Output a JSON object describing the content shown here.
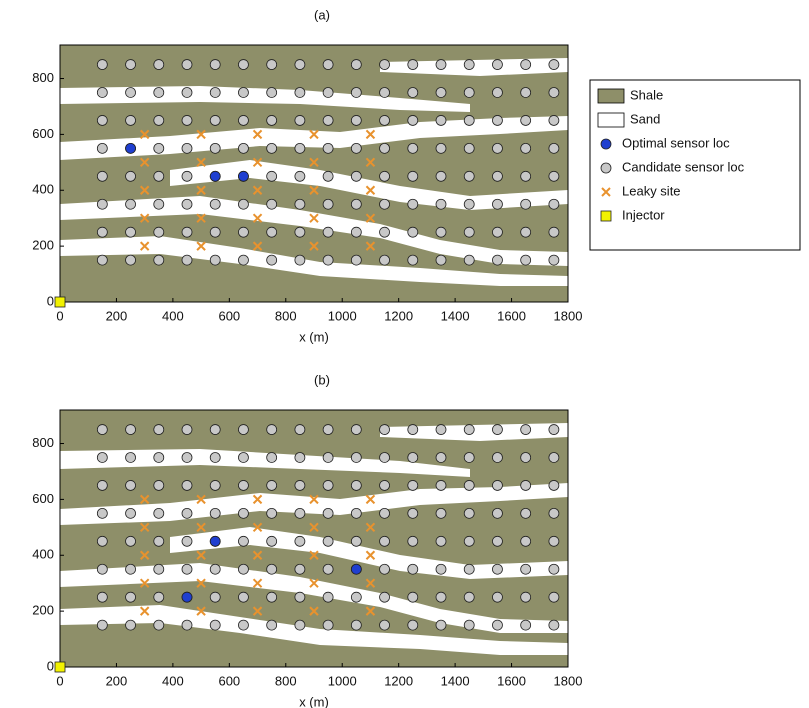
{
  "chart_data": [
    {
      "type": "scatter",
      "title": "(a)",
      "xlabel": "x (m)",
      "xlim": [
        0,
        1800
      ],
      "ylim": [
        0,
        920
      ],
      "xticks": [
        0,
        200,
        400,
        600,
        800,
        1000,
        1200,
        1400,
        1600,
        1800
      ],
      "yticks": [
        0,
        200,
        400,
        600,
        800
      ],
      "legend": "right",
      "layers": [
        {
          "name": "Shale",
          "color": "#8e8f69"
        },
        {
          "name": "Sand",
          "color": "#ffffff"
        }
      ],
      "series": [
        {
          "name": "Candidate sensor loc",
          "color": "#c8c8c8",
          "marker": "circle",
          "x": [
            150,
            250,
            350,
            450,
            550,
            650,
            750,
            850,
            950,
            1050,
            1150,
            1250,
            1350,
            1450,
            1550,
            1650,
            1750,
            150,
            250,
            350,
            450,
            550,
            650,
            750,
            850,
            950,
            1050,
            1150,
            1250,
            1350,
            1450,
            1550,
            1650,
            1750,
            150,
            250,
            350,
            450,
            550,
            650,
            750,
            850,
            950,
            1050,
            1150,
            1250,
            1350,
            1450,
            1550,
            1650,
            1750,
            150,
            250,
            350,
            450,
            550,
            650,
            750,
            850,
            950,
            1050,
            1150,
            1250,
            1350,
            1450,
            1550,
            1650,
            1750,
            150,
            250,
            350,
            450,
            550,
            650,
            750,
            850,
            950,
            1050,
            1150,
            1250,
            1350,
            1450,
            1550,
            1650,
            1750,
            150,
            250,
            350,
            450,
            550,
            650,
            750,
            850,
            950,
            1050,
            1150,
            1250,
            1350,
            1450,
            1550,
            1650,
            1750,
            150,
            250,
            350,
            450,
            550,
            650,
            750,
            850,
            950,
            1050,
            1150,
            1250,
            1350,
            1450,
            1550,
            1650,
            1750,
            150,
            250,
            350,
            450,
            550,
            650,
            750,
            850,
            950,
            1050,
            1150,
            1250,
            1350,
            1450,
            1550,
            1650,
            1750
          ],
          "values": [
            150,
            150,
            150,
            150,
            150,
            150,
            150,
            150,
            150,
            150,
            150,
            150,
            150,
            150,
            150,
            150,
            150,
            250,
            250,
            250,
            250,
            250,
            250,
            250,
            250,
            250,
            250,
            250,
            250,
            250,
            250,
            250,
            250,
            250,
            350,
            350,
            350,
            350,
            350,
            350,
            350,
            350,
            350,
            350,
            350,
            350,
            350,
            350,
            350,
            350,
            350,
            450,
            450,
            450,
            450,
            450,
            450,
            450,
            450,
            450,
            450,
            450,
            450,
            450,
            450,
            450,
            450,
            450,
            550,
            550,
            550,
            550,
            550,
            550,
            550,
            550,
            550,
            550,
            550,
            550,
            550,
            550,
            550,
            550,
            550,
            650,
            650,
            650,
            650,
            650,
            650,
            650,
            650,
            650,
            650,
            650,
            650,
            650,
            650,
            650,
            650,
            650,
            750,
            750,
            750,
            750,
            750,
            750,
            750,
            750,
            750,
            750,
            750,
            750,
            750,
            750,
            750,
            750,
            750,
            850,
            850,
            850,
            850,
            850,
            850,
            850,
            850,
            850,
            850,
            850,
            850,
            850,
            850,
            850,
            850,
            850
          ]
        },
        {
          "name": "Optimal sensor loc",
          "color": "#1f3fd0",
          "marker": "circle",
          "x": [
            250,
            550,
            650
          ],
          "values": [
            550,
            450,
            450
          ]
        },
        {
          "name": "Leaky site",
          "color": "#e8922e",
          "marker": "x",
          "x": [
            300,
            500,
            700,
            900,
            1100,
            300,
            500,
            700,
            900,
            1100,
            300,
            500,
            700,
            900,
            1100,
            300,
            500,
            700,
            900,
            1100,
            300,
            500,
            700,
            900,
            1100
          ],
          "values": [
            200,
            200,
            200,
            200,
            200,
            300,
            300,
            300,
            300,
            300,
            400,
            400,
            400,
            400,
            400,
            500,
            500,
            500,
            500,
            500,
            600,
            600,
            600,
            600,
            600
          ]
        },
        {
          "name": "Injector",
          "color": "#f2f200",
          "marker": "square",
          "x": [
            0
          ],
          "values": [
            0
          ]
        }
      ]
    },
    {
      "type": "scatter",
      "title": "(b)",
      "xlabel": "x (m)",
      "xlim": [
        0,
        1800
      ],
      "ylim": [
        0,
        920
      ],
      "xticks": [
        0,
        200,
        400,
        600,
        800,
        1000,
        1200,
        1400,
        1600,
        1800
      ],
      "yticks": [
        0,
        200,
        400,
        600,
        800
      ],
      "series": [
        {
          "color": "#c8c8c8",
          "marker": "circle",
          "x": [
            150,
            250,
            350,
            450,
            550,
            650,
            750,
            850,
            950,
            1050,
            1150,
            1250,
            1350,
            1450,
            1550,
            1650,
            1750,
            150,
            250,
            350,
            450,
            550,
            650,
            750,
            850,
            950,
            1050,
            1150,
            1250,
            1350,
            1450,
            1550,
            1650,
            1750,
            150,
            250,
            350,
            450,
            550,
            650,
            750,
            850,
            950,
            1050,
            1150,
            1250,
            1350,
            1450,
            1550,
            1650,
            1750,
            150,
            250,
            350,
            450,
            550,
            650,
            750,
            850,
            950,
            1050,
            1150,
            1250,
            1350,
            1450,
            1550,
            1650,
            1750,
            150,
            250,
            350,
            450,
            550,
            650,
            750,
            850,
            950,
            1050,
            1150,
            1250,
            1350,
            1450,
            1550,
            1650,
            1750,
            150,
            250,
            350,
            450,
            550,
            650,
            750,
            850,
            950,
            1050,
            1150,
            1250,
            1350,
            1450,
            1550,
            1650,
            1750,
            150,
            250,
            350,
            450,
            550,
            650,
            750,
            850,
            950,
            1050,
            1150,
            1250,
            1350,
            1450,
            1550,
            1650,
            1750,
            150,
            250,
            350,
            450,
            550,
            650,
            750,
            850,
            950,
            1050,
            1150,
            1250,
            1350,
            1450,
            1550,
            1650,
            1750
          ],
          "values": [
            150,
            150,
            150,
            150,
            150,
            150,
            150,
            150,
            150,
            150,
            150,
            150,
            150,
            150,
            150,
            150,
            150,
            250,
            250,
            250,
            250,
            250,
            250,
            250,
            250,
            250,
            250,
            250,
            250,
            250,
            250,
            250,
            250,
            250,
            350,
            350,
            350,
            350,
            350,
            350,
            350,
            350,
            350,
            350,
            350,
            350,
            350,
            350,
            350,
            350,
            350,
            450,
            450,
            450,
            450,
            450,
            450,
            450,
            450,
            450,
            450,
            450,
            450,
            450,
            450,
            450,
            450,
            450,
            550,
            550,
            550,
            550,
            550,
            550,
            550,
            550,
            550,
            550,
            550,
            550,
            550,
            550,
            550,
            550,
            550,
            650,
            650,
            650,
            650,
            650,
            650,
            650,
            650,
            650,
            650,
            650,
            650,
            650,
            650,
            650,
            650,
            650,
            750,
            750,
            750,
            750,
            750,
            750,
            750,
            750,
            750,
            750,
            750,
            750,
            750,
            750,
            750,
            750,
            750,
            850,
            850,
            850,
            850,
            850,
            850,
            850,
            850,
            850,
            850,
            850,
            850,
            850,
            850,
            850,
            850,
            850
          ]
        },
        {
          "color": "#1f3fd0",
          "marker": "circle",
          "x": [
            450,
            550,
            1050
          ],
          "values": [
            250,
            450,
            350
          ]
        },
        {
          "color": "#e8922e",
          "marker": "x",
          "x": [
            300,
            500,
            700,
            900,
            1100,
            300,
            500,
            700,
            900,
            1100,
            300,
            500,
            700,
            900,
            1100,
            300,
            500,
            700,
            900,
            1100,
            300,
            500,
            700,
            900,
            1100
          ],
          "values": [
            200,
            200,
            200,
            200,
            200,
            300,
            300,
            300,
            300,
            300,
            400,
            400,
            400,
            400,
            400,
            500,
            500,
            500,
            500,
            500,
            600,
            600,
            600,
            600,
            600
          ]
        },
        {
          "color": "#f2f200",
          "marker": "square",
          "x": [
            0
          ],
          "values": [
            0
          ]
        }
      ]
    }
  ]
}
